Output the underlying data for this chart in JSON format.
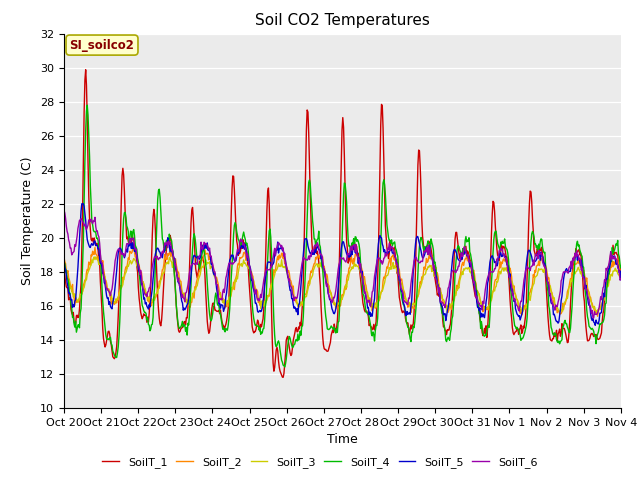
{
  "title": "Soil CO2 Temperatures",
  "xlabel": "Time",
  "ylabel": "Soil Temperature (C)",
  "ylim": [
    10,
    32
  ],
  "yticks": [
    10,
    12,
    14,
    16,
    18,
    20,
    22,
    24,
    26,
    28,
    30,
    32
  ],
  "x_labels": [
    "Oct 20",
    "Oct 21",
    "Oct 22",
    "Oct 23",
    "Oct 24",
    "Oct 25",
    "Oct 26",
    "Oct 27",
    "Oct 28",
    "Oct 29",
    "Oct 30",
    "Oct 31",
    "Nov 1",
    "Nov 2",
    "Nov 3",
    "Nov 4"
  ],
  "series_names": [
    "SoilT_1",
    "SoilT_2",
    "SoilT_3",
    "SoilT_4",
    "SoilT_5",
    "SoilT_6"
  ],
  "series_colors": [
    "#cc0000",
    "#ff8800",
    "#cccc00",
    "#00bb00",
    "#0000cc",
    "#9900aa"
  ],
  "plot_bg_color": "#ebebeb",
  "annotation_text": "SI_soilco2",
  "annotation_bg": "#ffffcc",
  "annotation_fg": "#880000",
  "n_days": 15,
  "pts_per_day": 48
}
